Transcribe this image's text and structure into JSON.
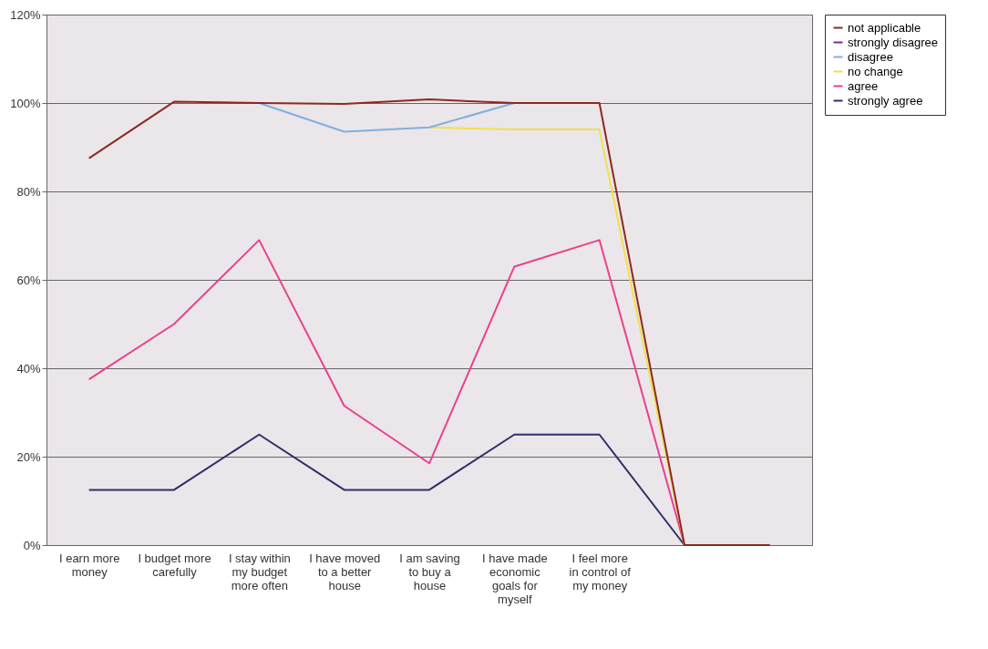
{
  "chart_data": {
    "type": "line",
    "categories": [
      "I earn more money",
      "I budget more carefully",
      "I stay within my budget more often",
      "I have moved to a better house",
      "I am saving to buy a house",
      "I have made economic goals for myself",
      "I feel more in control of my money",
      null,
      null
    ],
    "series": [
      {
        "name": "not applicable",
        "color": "#8b2a22",
        "values": [
          87.5,
          100.3,
          100,
          99.8,
          100.8,
          100,
          100,
          0,
          0
        ]
      },
      {
        "name": "strongly disagree",
        "color": "#7a2a8a",
        "values": [
          null,
          null,
          null,
          null,
          null,
          null,
          null,
          null,
          null
        ]
      },
      {
        "name": "disagree",
        "color": "#7fb0e0",
        "values": [
          null,
          null,
          100,
          93.5,
          94.5,
          100,
          null,
          null,
          null
        ]
      },
      {
        "name": "no change",
        "color": "#f0e050",
        "values": [
          null,
          null,
          null,
          null,
          94.5,
          94,
          94,
          0,
          null
        ]
      },
      {
        "name": "agree",
        "color": "#e8408f",
        "values": [
          37.5,
          50,
          69,
          31.5,
          18.5,
          63,
          69,
          0,
          0
        ]
      },
      {
        "name": "strongly agree",
        "color": "#2e2f6a",
        "values": [
          12.5,
          12.5,
          25,
          12.5,
          12.5,
          25,
          25,
          0,
          0
        ]
      }
    ],
    "ylim": [
      0,
      120
    ],
    "yticks": [
      {
        "value": 0,
        "label": "0%"
      },
      {
        "value": 20,
        "label": "20%"
      },
      {
        "value": 40,
        "label": "40%"
      },
      {
        "value": 60,
        "label": "60%"
      },
      {
        "value": 80,
        "label": "80%"
      },
      {
        "value": 100,
        "label": "100%"
      },
      {
        "value": 120,
        "label": "120%"
      }
    ],
    "grid": "y",
    "legend": "right",
    "marker": "none",
    "line_style": "solid"
  }
}
